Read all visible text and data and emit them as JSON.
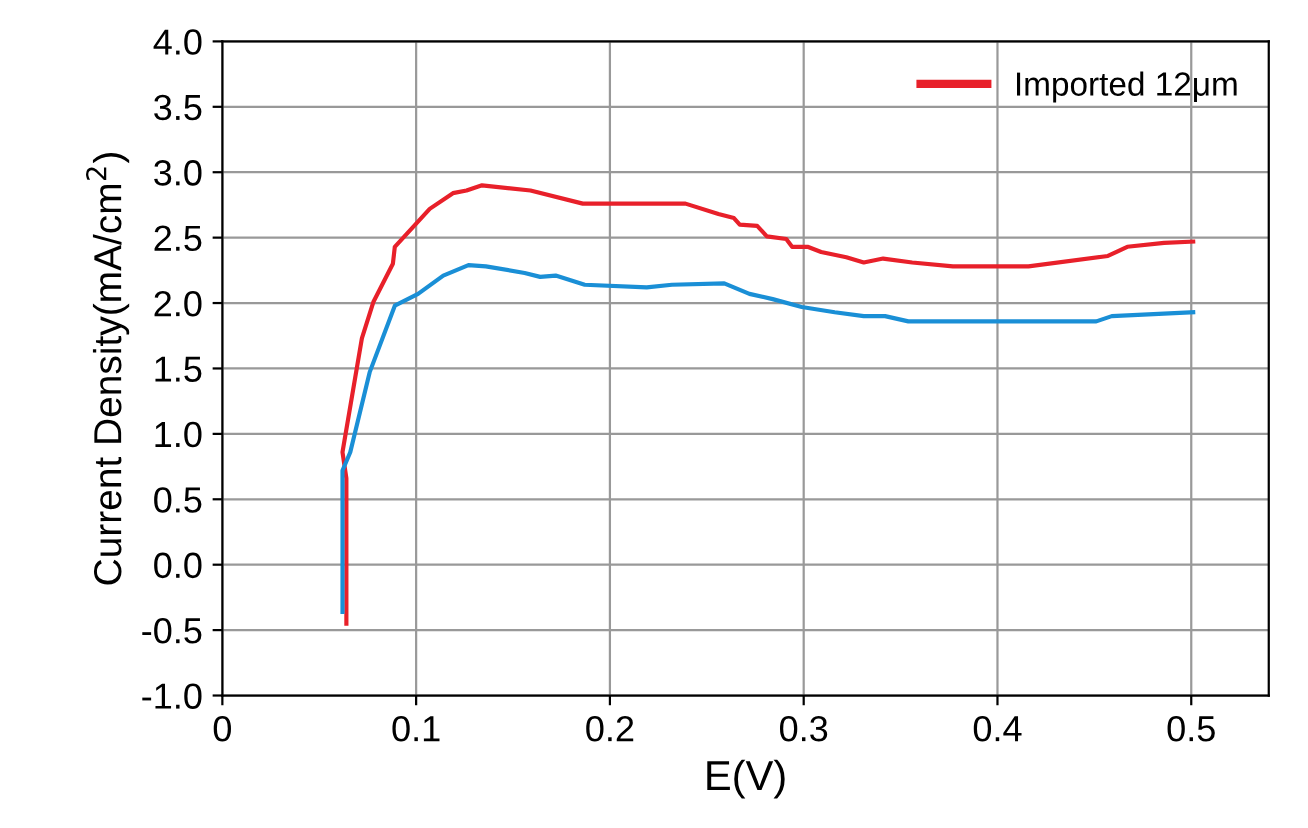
{
  "chart_data": {
    "type": "line",
    "xlabel": "E(V)",
    "ylabel": "Current Density(mA/cm$^{2}$)",
    "xlim": [
      0,
      0.54
    ],
    "xticks": [
      0,
      0.1,
      0.2,
      0.3,
      0.4,
      0.5
    ],
    "ylim": [
      -1.0,
      4.0
    ],
    "yticks": [
      {
        "value": -1.0,
        "label": "-1.0"
      },
      {
        "value": -0.5,
        "label": "-0.5"
      },
      {
        "value": 0.0,
        "label": "0.0"
      },
      {
        "value": 0.5,
        "label": "0.5"
      },
      {
        "value": 1.0,
        "label": "1.0"
      },
      {
        "value": 1.5,
        "label": "1.5"
      },
      {
        "value": 2.0,
        "label": "2.0"
      },
      {
        "value": 2.5,
        "label": "2.5"
      },
      {
        "value": 3.0,
        "label": "3.0"
      },
      {
        "value": 3.5,
        "label": "3.5"
      },
      {
        "value": 4.0,
        "label": "4.0"
      }
    ],
    "grid": true,
    "legend": "top right",
    "marker": "none",
    "line_style": "solid",
    "series": [
      {
        "name": "Imported 12μm",
        "color": "#e8202a",
        "x": [
          0.064,
          0.064,
          0.062,
          0.072,
          0.078,
          0.088,
          0.089,
          0.107,
          0.119,
          0.126,
          0.134,
          0.159,
          0.186,
          0.239,
          0.256,
          0.264,
          0.267,
          0.276,
          0.281,
          0.291,
          0.294,
          0.302,
          0.309,
          0.322,
          0.331,
          0.341,
          0.356,
          0.377,
          0.416,
          0.457,
          0.467,
          0.486,
          0.501
        ],
        "values": [
          -0.45,
          0.66,
          0.86,
          1.73,
          2.01,
          2.3,
          2.43,
          2.72,
          2.84,
          2.86,
          2.9,
          2.86,
          2.76,
          2.76,
          2.68,
          2.65,
          2.6,
          2.59,
          2.51,
          2.49,
          2.43,
          2.43,
          2.39,
          2.35,
          2.31,
          2.34,
          2.31,
          2.28,
          2.28,
          2.36,
          2.43,
          2.46,
          2.47
        ]
      },
      {
        "color": "#1a8fd6",
        "x": [
          0.062,
          0.062,
          0.066,
          0.076,
          0.089,
          0.101,
          0.114,
          0.127,
          0.136,
          0.156,
          0.164,
          0.172,
          0.187,
          0.219,
          0.232,
          0.259,
          0.272,
          0.284,
          0.299,
          0.316,
          0.331,
          0.342,
          0.354,
          0.451,
          0.459,
          0.501
        ],
        "values": [
          -0.36,
          0.72,
          0.86,
          1.47,
          1.98,
          2.07,
          2.21,
          2.29,
          2.28,
          2.23,
          2.2,
          2.21,
          2.14,
          2.12,
          2.14,
          2.15,
          2.07,
          2.03,
          1.97,
          1.93,
          1.9,
          1.9,
          1.86,
          1.86,
          1.9,
          1.93
        ]
      }
    ]
  }
}
